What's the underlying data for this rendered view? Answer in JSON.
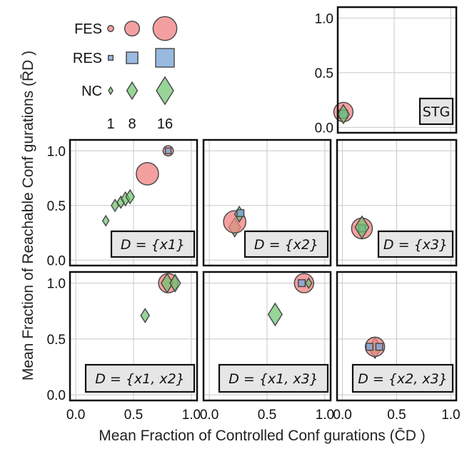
{
  "figure": {
    "xlabel": "Mean Fraction of Controlled Conf gurations (C̄D )",
    "ylabel": "Mean Fraction of Reachable Conf gurations (R̄D )"
  },
  "legend": {
    "rows": [
      "FES",
      "RES",
      "NC"
    ],
    "sizes": [
      "1",
      "8",
      "16"
    ]
  },
  "colors": {
    "FES": "#f08080",
    "RES": "#7fa8d8",
    "NC": "#6cc36c",
    "edge": "#444444"
  },
  "chart_data": [
    {
      "type": "scatter",
      "panel": "STG",
      "label": "STG",
      "xlim": [
        0,
        1.05
      ],
      "ylim": [
        -0.05,
        1.1
      ],
      "yticks": [
        "0.0",
        "0.5",
        "1.0"
      ],
      "points": [
        {
          "series": "FES",
          "x": 0.05,
          "y": 0.14,
          "size": 10
        },
        {
          "series": "RES",
          "x": 0.05,
          "y": 0.12,
          "size": 4
        },
        {
          "series": "NC",
          "x": 0.05,
          "y": 0.12,
          "size": 8
        }
      ]
    },
    {
      "type": "scatter",
      "panel": "x1",
      "label": "D = {x1}",
      "xlim": [
        -0.05,
        1.05
      ],
      "ylim": [
        -0.05,
        1.1
      ],
      "yticks": [
        "0.0",
        "0.5",
        "1.0"
      ],
      "points": [
        {
          "series": "NC",
          "x": 0.26,
          "y": 0.36,
          "size": 3
        },
        {
          "series": "NC",
          "x": 0.34,
          "y": 0.5,
          "size": 4
        },
        {
          "series": "NC",
          "x": 0.39,
          "y": 0.53,
          "size": 4
        },
        {
          "series": "NC",
          "x": 0.43,
          "y": 0.56,
          "size": 5
        },
        {
          "series": "NC",
          "x": 0.47,
          "y": 0.58,
          "size": 5
        },
        {
          "series": "FES",
          "x": 0.62,
          "y": 0.79,
          "size": 12
        },
        {
          "series": "FES",
          "x": 0.8,
          "y": 1.0,
          "size": 4
        },
        {
          "series": "RES",
          "x": 0.8,
          "y": 1.0,
          "size": 2
        }
      ]
    },
    {
      "type": "scatter",
      "panel": "x2",
      "label": "D = {x2}",
      "xlim": [
        -0.05,
        1.05
      ],
      "ylim": [
        -0.05,
        1.1
      ],
      "points": [
        {
          "series": "NC",
          "x": 0.22,
          "y": 0.3,
          "size": 8
        },
        {
          "series": "FES",
          "x": 0.22,
          "y": 0.35,
          "size": 12
        },
        {
          "series": "NC",
          "x": 0.26,
          "y": 0.42,
          "size": 6
        },
        {
          "series": "RES",
          "x": 0.27,
          "y": 0.43,
          "size": 3
        }
      ]
    },
    {
      "type": "scatter",
      "panel": "x3",
      "label": "D = {x3}",
      "xlim": [
        -0.05,
        1.05
      ],
      "ylim": [
        -0.05,
        1.1
      ],
      "points": [
        {
          "series": "FES",
          "x": 0.18,
          "y": 0.29,
          "size": 11
        },
        {
          "series": "RES",
          "x": 0.18,
          "y": 0.29,
          "size": 3
        },
        {
          "series": "NC",
          "x": 0.18,
          "y": 0.3,
          "size": 10
        }
      ]
    },
    {
      "type": "scatter",
      "panel": "x1x2",
      "label": "D = {x1, x2}",
      "xlim": [
        -0.05,
        1.05
      ],
      "ylim": [
        -0.05,
        1.1
      ],
      "yticks": [
        "0.0",
        "0.5",
        "1.0"
      ],
      "xticks": [
        "0.0",
        "0.5",
        "1.0"
      ],
      "points": [
        {
          "series": "NC",
          "x": 0.6,
          "y": 0.71,
          "size": 5
        },
        {
          "series": "FES",
          "x": 0.8,
          "y": 1.0,
          "size": 10
        },
        {
          "series": "NC",
          "x": 0.79,
          "y": 1.0,
          "size": 8
        },
        {
          "series": "NC",
          "x": 0.86,
          "y": 1.0,
          "size": 7
        }
      ]
    },
    {
      "type": "scatter",
      "panel": "x1x3",
      "label": "D = {x1, x3}",
      "xlim": [
        -0.05,
        1.05
      ],
      "ylim": [
        -0.05,
        1.1
      ],
      "xticks": [
        "0.0",
        "0.5",
        "1.0"
      ],
      "points": [
        {
          "series": "NC",
          "x": 0.57,
          "y": 0.72,
          "size": 10
        },
        {
          "series": "FES",
          "x": 0.82,
          "y": 1.0,
          "size": 10
        },
        {
          "series": "RES",
          "x": 0.8,
          "y": 1.0,
          "size": 3
        },
        {
          "series": "NC",
          "x": 0.86,
          "y": 1.0,
          "size": 3
        }
      ]
    },
    {
      "type": "scatter",
      "panel": "x2x3",
      "label": "D = {x2, x3}",
      "xlim": [
        -0.05,
        1.05
      ],
      "ylim": [
        -0.05,
        1.1
      ],
      "xticks": [
        "0.0",
        "0.5",
        "1.0"
      ],
      "points": [
        {
          "series": "NC",
          "x": 0.3,
          "y": 0.42,
          "size": 9
        },
        {
          "series": "FES",
          "x": 0.3,
          "y": 0.43,
          "size": 10
        },
        {
          "series": "RES",
          "x": 0.25,
          "y": 0.43,
          "size": 3
        },
        {
          "series": "RES",
          "x": 0.34,
          "y": 0.43,
          "size": 3
        }
      ]
    }
  ]
}
